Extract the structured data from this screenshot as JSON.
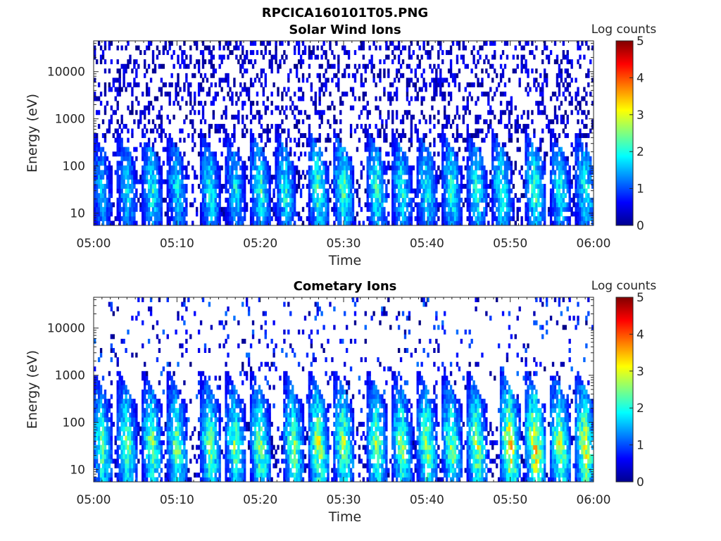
{
  "figure": {
    "title": "RPCICA160101T05.PNG"
  },
  "chart_data": [
    {
      "type": "heatmap",
      "title": "Solar Wind Ions",
      "xlabel": "Time",
      "ylabel": "Energy (eV)",
      "y_scale": "log",
      "xlim": [
        "05:00",
        "06:00"
      ],
      "ylim": [
        5.5,
        45000
      ],
      "x_ticks": [
        "05:00",
        "05:10",
        "05:20",
        "05:30",
        "05:40",
        "05:50",
        "06:00"
      ],
      "y_ticks": [
        {
          "value": 10,
          "label": "10"
        },
        {
          "value": 100,
          "label": "100"
        },
        {
          "value": 1000,
          "label": "1000"
        },
        {
          "value": 10000,
          "label": "10000"
        }
      ],
      "colorbar": {
        "title": "Log counts",
        "range": [
          0,
          5
        ],
        "ticks": [
          "0",
          "1",
          "2",
          "3",
          "4",
          "5"
        ],
        "colormap": "jet"
      },
      "band_intensity": {
        "max_log_counts": 3.0,
        "upper_band_energy_eV": 180,
        "high_energy_background": "sparse ~0-0.5"
      },
      "bursts": [
        {
          "time": "05:01",
          "peak": 1.8
        },
        {
          "time": "05:04",
          "peak": 2.0
        },
        {
          "time": "05:07",
          "peak": 2.2
        },
        {
          "time": "05:10",
          "peak": 2.0
        },
        {
          "time": "05:14",
          "peak": 2.2
        },
        {
          "time": "05:17",
          "peak": 2.0
        },
        {
          "time": "05:20",
          "peak": 2.4
        },
        {
          "time": "05:23",
          "peak": 2.2
        },
        {
          "time": "05:27",
          "peak": 2.6
        },
        {
          "time": "05:30",
          "peak": 2.5
        },
        {
          "time": "05:34",
          "peak": 2.4
        },
        {
          "time": "05:37",
          "peak": 2.2
        },
        {
          "time": "05:40",
          "peak": 2.2
        },
        {
          "time": "05:43",
          "peak": 2.3
        },
        {
          "time": "05:46",
          "peak": 2.3
        },
        {
          "time": "05:49",
          "peak": 2.4
        },
        {
          "time": "05:53",
          "peak": 2.5
        },
        {
          "time": "05:56",
          "peak": 2.2
        },
        {
          "time": "05:59",
          "peak": 2.3
        }
      ]
    },
    {
      "type": "heatmap",
      "title": "Cometary Ions",
      "xlabel": "Time",
      "ylabel": "Energy (eV)",
      "y_scale": "log",
      "xlim": [
        "05:00",
        "06:00"
      ],
      "ylim": [
        5.5,
        45000
      ],
      "x_ticks": [
        "05:00",
        "05:10",
        "05:20",
        "05:30",
        "05:40",
        "05:50",
        "06:00"
      ],
      "y_ticks": [
        {
          "value": 10,
          "label": "10"
        },
        {
          "value": 100,
          "label": "100"
        },
        {
          "value": 1000,
          "label": "1000"
        },
        {
          "value": 10000,
          "label": "10000"
        }
      ],
      "colorbar": {
        "title": "Log counts",
        "range": [
          0,
          5
        ],
        "ticks": [
          "0",
          "1",
          "2",
          "3",
          "4",
          "5"
        ],
        "colormap": "jet"
      },
      "band_intensity": {
        "max_log_counts": 3.7,
        "upper_band_energy_eV": 400,
        "high_energy_background": "sparse ~0-1"
      },
      "bursts": [
        {
          "time": "05:01",
          "peak": 2.6
        },
        {
          "time": "05:04",
          "peak": 2.7
        },
        {
          "time": "05:07",
          "peak": 2.8
        },
        {
          "time": "05:10",
          "peak": 2.8
        },
        {
          "time": "05:14",
          "peak": 2.8
        },
        {
          "time": "05:17",
          "peak": 2.7
        },
        {
          "time": "05:20",
          "peak": 2.9
        },
        {
          "time": "05:24",
          "peak": 2.8
        },
        {
          "time": "05:27",
          "peak": 3.1
        },
        {
          "time": "05:30",
          "peak": 3.0
        },
        {
          "time": "05:34",
          "peak": 2.9
        },
        {
          "time": "05:37",
          "peak": 2.8
        },
        {
          "time": "05:40",
          "peak": 2.9
        },
        {
          "time": "05:43",
          "peak": 2.9
        },
        {
          "time": "05:46",
          "peak": 3.0
        },
        {
          "time": "05:50",
          "peak": 3.5
        },
        {
          "time": "05:53",
          "peak": 3.6
        },
        {
          "time": "05:56",
          "peak": 3.2
        },
        {
          "time": "05:59",
          "peak": 3.3
        }
      ]
    }
  ]
}
